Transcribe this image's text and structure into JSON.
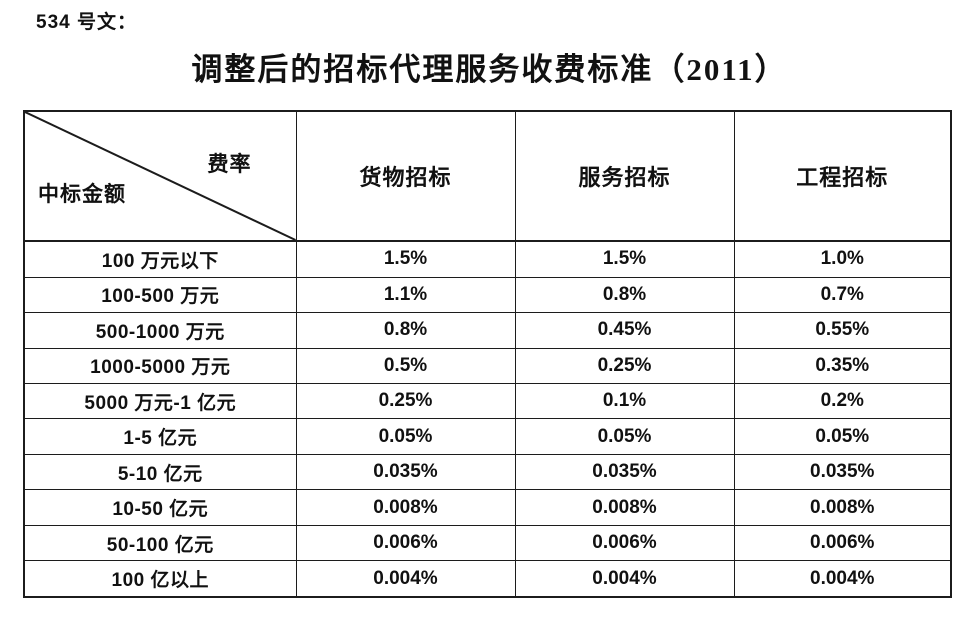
{
  "doc": {
    "doc_number": "534 号文：",
    "title": "调整后的招标代理服务收费标准（2011）"
  },
  "table": {
    "corner": {
      "top_right": "费率",
      "bottom_left": "中标金额"
    },
    "columns": [
      "货物招标",
      "服务招标",
      "工程招标"
    ],
    "rows": [
      {
        "label": "100 万元以下",
        "values": [
          "1.5%",
          "1.5%",
          "1.0%"
        ]
      },
      {
        "label": "100-500 万元",
        "values": [
          "1.1%",
          "0.8%",
          "0.7%"
        ]
      },
      {
        "label": "500-1000 万元",
        "values": [
          "0.8%",
          "0.45%",
          "0.55%"
        ]
      },
      {
        "label": "1000-5000 万元",
        "values": [
          "0.5%",
          "0.25%",
          "0.35%"
        ]
      },
      {
        "label": "5000 万元-1 亿元",
        "values": [
          "0.25%",
          "0.1%",
          "0.2%"
        ]
      },
      {
        "label": "1-5 亿元",
        "values": [
          "0.05%",
          "0.05%",
          "0.05%"
        ]
      },
      {
        "label": "5-10 亿元",
        "values": [
          "0.035%",
          "0.035%",
          "0.035%"
        ]
      },
      {
        "label": "10-50 亿元",
        "values": [
          "0.008%",
          "0.008%",
          "0.008%"
        ]
      },
      {
        "label": "50-100 亿元",
        "values": [
          "0.006%",
          "0.006%",
          "0.006%"
        ]
      },
      {
        "label": "100 亿以上",
        "values": [
          "0.004%",
          "0.004%",
          "0.004%"
        ]
      }
    ],
    "border_color": "#1c1c1c",
    "background_color": "#ffffff"
  }
}
